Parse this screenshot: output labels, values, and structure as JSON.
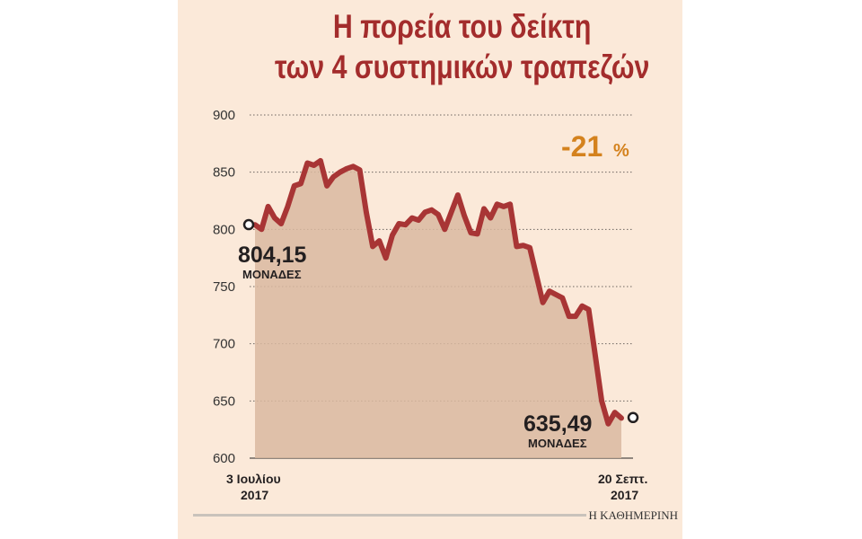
{
  "header": {
    "title_line1": "Η πορεία του δείκτη",
    "title_line2": "των 4 συστημικών τραπεζών"
  },
  "colors": {
    "background": "#fbe9d9",
    "title": "#a32c2c",
    "line": "#a83535",
    "area": "#d9b9a0",
    "change": "#d4821e"
  },
  "change": {
    "value": "-21",
    "suffix": "%"
  },
  "start_annotation": {
    "value": "804,15",
    "unit": "ΜΟΝΑΔΕΣ"
  },
  "end_annotation": {
    "value": "635,49",
    "unit": "ΜΟΝΑΔΕΣ"
  },
  "x_labels": {
    "start_line1": "3 Ιουλίου",
    "start_line2": "2017",
    "end_line1": "20 Σεπτ.",
    "end_line2": "2017"
  },
  "credit": "Η ΚΑΘΗΜΕΡΙΝΗ",
  "chart_data": {
    "type": "area",
    "title": "Η πορεία του δείκτη των 4 συστημικών τραπεζών",
    "xlabel": "",
    "ylabel": "",
    "ylim": [
      600,
      900
    ],
    "yticks": [
      600,
      650,
      700,
      750,
      800,
      850,
      900
    ],
    "grid": true,
    "start_date": "3 Ιουλίου 2017",
    "end_date": "20 Σεπτ. 2017",
    "start_value": 804.15,
    "end_value": 635.49,
    "values": [
      804,
      800,
      820,
      810,
      805,
      820,
      838,
      840,
      858,
      856,
      860,
      838,
      846,
      850,
      853,
      855,
      852,
      815,
      785,
      790,
      775,
      795,
      805,
      804,
      810,
      808,
      815,
      817,
      813,
      800,
      815,
      830,
      812,
      797,
      796,
      818,
      810,
      822,
      820,
      822,
      785,
      786,
      784,
      760,
      736,
      746,
      743,
      740,
      724,
      724,
      733,
      730,
      690,
      650,
      630,
      640,
      635
    ]
  }
}
